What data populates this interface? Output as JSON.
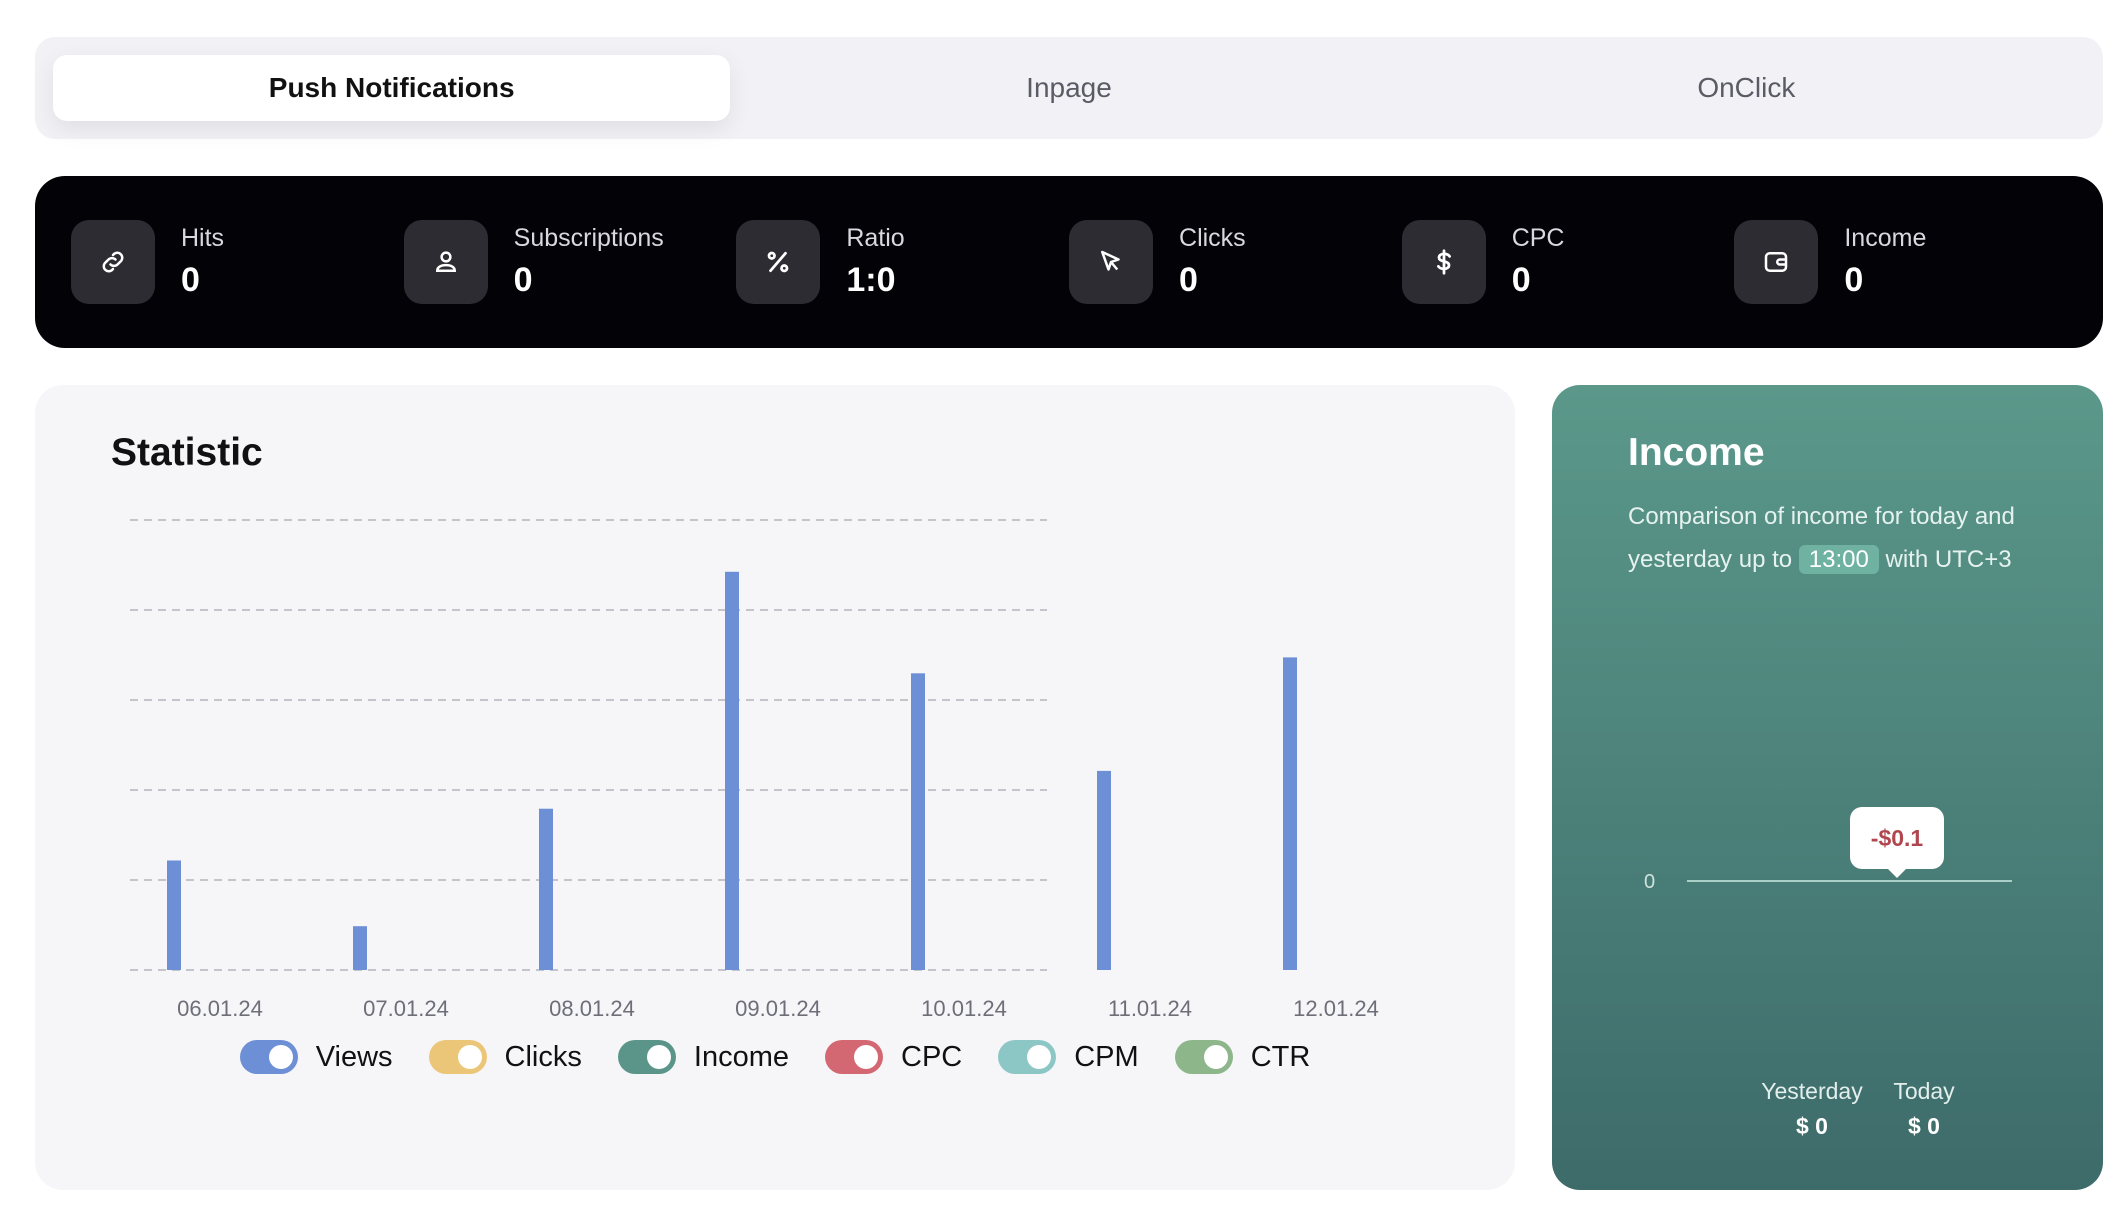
{
  "tabs": [
    {
      "label": "Push Notifications",
      "active": true
    },
    {
      "label": "Inpage",
      "active": false
    },
    {
      "label": "OnClick",
      "active": false
    }
  ],
  "stats": [
    {
      "label": "Hits",
      "value": "0",
      "icon": "link-icon"
    },
    {
      "label": "Subscriptions",
      "value": "0",
      "icon": "user-icon"
    },
    {
      "label": "Ratio",
      "value": "1:0",
      "icon": "percent-icon"
    },
    {
      "label": "Clicks",
      "value": "0",
      "icon": "cursor-icon"
    },
    {
      "label": "CPC",
      "value": "0",
      "icon": "dollar-icon"
    },
    {
      "label": "Income",
      "value": "0",
      "icon": "wallet-icon"
    }
  ],
  "statistic": {
    "title": "Statistic",
    "legend": [
      {
        "label": "Views",
        "color": "#6c8fd5"
      },
      {
        "label": "Clicks",
        "color": "#ecc678"
      },
      {
        "label": "Income",
        "color": "#5b958a"
      },
      {
        "label": "CPC",
        "color": "#d36872"
      },
      {
        "label": "CPM",
        "color": "#8cc7c6"
      },
      {
        "label": "CTR",
        "color": "#8db68a"
      }
    ]
  },
  "chart_data": {
    "type": "bar",
    "categories": [
      "06.01.24",
      "07.01.24",
      "08.01.24",
      "09.01.24",
      "10.01.24",
      "11.01.24",
      "12.01.24"
    ],
    "series": [
      {
        "name": "Views",
        "values": [
          0.275,
          0.11,
          0.405,
          1.0,
          0.745,
          0.5,
          0.785
        ]
      }
    ],
    "ylim": [
      0,
      1.13
    ],
    "grid": true,
    "bar_color": "#6c8fd5"
  },
  "income": {
    "title": "Income",
    "desc_before": "Comparison of income for today and yesterday up to",
    "time": "13:00",
    "desc_after": "with UTC+3",
    "tooltip": "-$0.1",
    "axis_zero": "0",
    "yesterday_label": "Yesterday",
    "yesterday_value": "$ 0",
    "today_label": "Today",
    "today_value": "$ 0"
  }
}
